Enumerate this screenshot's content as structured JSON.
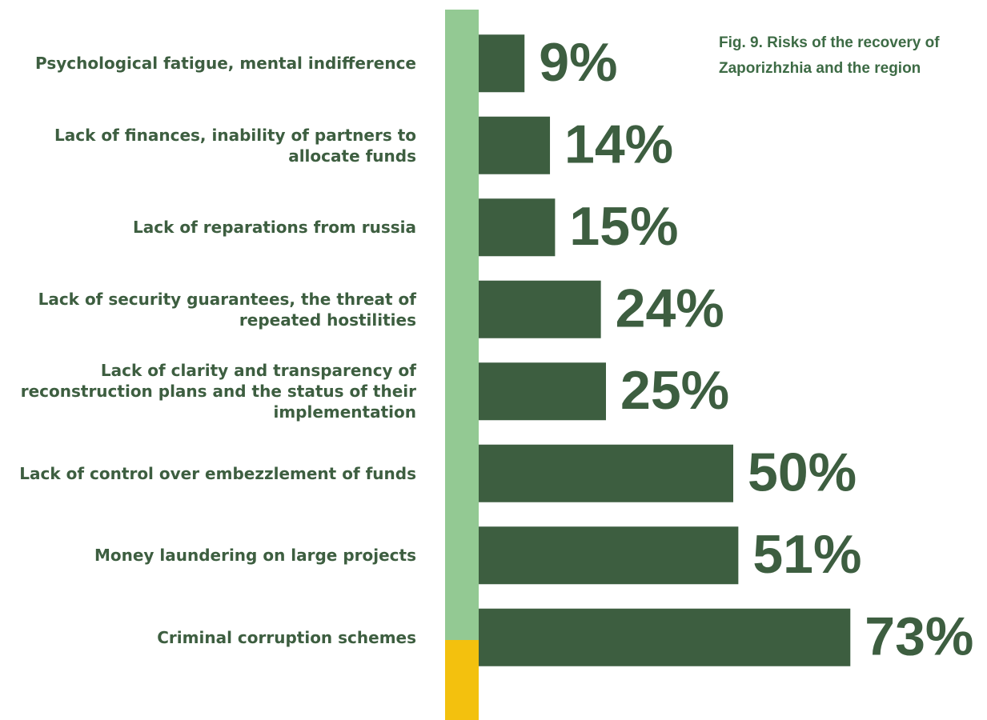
{
  "chart_data": {
    "type": "barh",
    "title": "Fig. 9. Risks of the recovery of Zaporizhzhia and the region",
    "categories": [
      "Psychological fatigue, mental indifference",
      "Lack of finances, inability of partners to allocate funds",
      "Lack of reparations from russia",
      "Lack of security guarantees, the threat of repeated hostilities",
      "Lack of clarity and transparency of reconstruction plans and the status of their implementation",
      "Lack of control over embezzlement of funds",
      "Money laundering on large projects",
      "Criminal corruption schemes"
    ],
    "values": [
      9,
      14,
      15,
      24,
      25,
      50,
      51,
      73
    ],
    "value_labels": [
      "9%",
      "14%",
      "15%",
      "24%",
      "25%",
      "50%",
      "51%",
      "73%"
    ],
    "color": "#3d5e40",
    "xlim": [
      0,
      100
    ]
  }
}
